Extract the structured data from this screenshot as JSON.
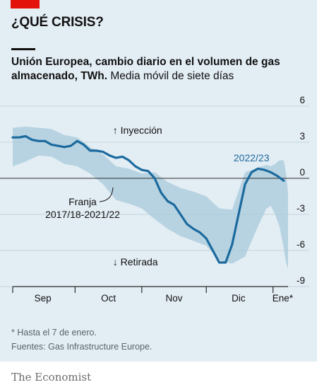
{
  "header": {
    "headline": "¿QUÉ CRISIS?",
    "subtitle_bold": "Unión Europea, cambio diario en el volumen de gas almacenado, TWh.",
    "subtitle_regular": " Media móvil de siete días"
  },
  "footer": {
    "footnote": "* Hasta el 7 de enero.",
    "source": "Fuentes: Gas Infrastructure Europe.",
    "brand": "The Economist"
  },
  "colors": {
    "background": "#e3edf4",
    "band": "#a8cadb",
    "line": "#1b6a9e",
    "accent_red": "#e3120b"
  },
  "chart_data": {
    "type": "area",
    "x": {
      "tick_labels": [
        "Sep",
        "Oct",
        "Nov",
        "Dic",
        "Ene*"
      ],
      "domain_days": [
        0,
        128
      ],
      "label_days": [
        14,
        44.5,
        75,
        105,
        125.5
      ],
      "boundary_days": [
        0,
        29,
        60,
        90,
        121
      ]
    },
    "y": {
      "range": [
        -9,
        6
      ],
      "ticks": [
        6,
        3,
        0,
        -3,
        -6,
        -9
      ],
      "tick_labels": [
        "6",
        "3",
        "0",
        "-3",
        "-6",
        "-9"
      ],
      "zero_line": true
    },
    "band_label": "Franja\n2017/18-2021/22",
    "series_label": "2022/23",
    "annotations": {
      "up": "↑ Inyección",
      "down": "↓ Retirada"
    },
    "series": [
      {
        "name": "2022/23",
        "days": [
          0,
          3,
          6,
          9,
          12,
          15,
          18,
          21,
          24,
          27,
          30,
          33,
          36,
          39,
          42,
          45,
          48,
          51,
          54,
          57,
          60,
          63,
          66,
          69,
          72,
          75,
          78,
          81,
          84,
          87,
          90,
          93,
          96,
          99,
          102,
          105,
          108,
          111,
          114,
          117,
          120,
          123,
          126
        ],
        "values": [
          3.4,
          3.4,
          3.5,
          3.2,
          3.1,
          3.1,
          2.8,
          2.7,
          2.6,
          2.7,
          3.1,
          2.8,
          2.3,
          2.3,
          2.2,
          1.9,
          1.7,
          1.8,
          1.5,
          1.0,
          0.7,
          0.6,
          0,
          -1.2,
          -1.9,
          -2.2,
          -3.0,
          -3.8,
          -4.2,
          -4.5,
          -5.0,
          -6.0,
          -7.0,
          -7.0,
          -5.5,
          -3.0,
          -0.5,
          0.5,
          0.8,
          0.7,
          0.5,
          0.2,
          -0.2
        ]
      }
    ],
    "band": {
      "days": [
        0,
        6,
        12,
        18,
        24,
        30,
        36,
        42,
        48,
        54,
        60,
        66,
        72,
        78,
        84,
        90,
        96,
        102,
        108,
        114,
        118,
        120,
        122,
        124,
        126,
        127,
        128
      ],
      "upper": [
        4.2,
        4.3,
        4.2,
        4.1,
        3.6,
        3.4,
        2.6,
        2.0,
        1.0,
        0.8,
        0.4,
        0.5,
        -0.3,
        -0.8,
        -1.1,
        -1.5,
        -2.5,
        -2.6,
        0.5,
        0.9,
        1.1,
        1.0,
        1.2,
        1.5,
        1.5,
        0.5,
        -1.2
      ],
      "lower": [
        1.0,
        1.4,
        1.9,
        1.8,
        1.2,
        1.0,
        0.4,
        -0.5,
        -1.8,
        -2.1,
        -2.5,
        -3.4,
        -4.2,
        -4.8,
        -5.2,
        -5.6,
        -6.8,
        -7.1,
        -6.5,
        -4.0,
        -2.5,
        -2.3,
        -3.0,
        -4.0,
        -5.8,
        -7.0,
        -7.5
      ]
    }
  }
}
